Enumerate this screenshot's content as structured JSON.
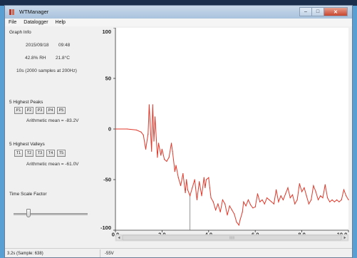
{
  "window": {
    "title": "WTManager",
    "controls": {
      "minimize": "–",
      "maximize": "□",
      "close": "✕"
    }
  },
  "menu": [
    "File",
    "Datalogger",
    "Help"
  ],
  "graph_info": {
    "heading": "Graph Info",
    "date": "2015/09/18",
    "time": "09:48",
    "humidity": "42.8% RH",
    "temperature": "21.8°C",
    "samples": "10s (2000 samples at 200Hz)"
  },
  "peaks": {
    "heading": "5 Highest Peaks",
    "buttons": [
      "P1",
      "P2",
      "P3",
      "P4",
      "P5"
    ],
    "mean": "Arithmetic mean = -83.2V"
  },
  "valleys": {
    "heading": "5 Highest Valleys",
    "buttons": [
      "T1",
      "T2",
      "T3",
      "T4",
      "T5"
    ],
    "mean": "Arithmetic mean = -61.0V"
  },
  "time_scale": {
    "label": "Time Scale Factor",
    "value": 0.2
  },
  "status": {
    "left": "3.2s (Sample: 638)",
    "right": "-55V"
  },
  "colors": {
    "series": "#e0392b",
    "cursor": "#7a7a7a",
    "axis": "#333333"
  },
  "chart_data": {
    "type": "line",
    "xlim": [
      0,
      10
    ],
    "ylim": [
      -100,
      100
    ],
    "x_ticks": [
      "0.0",
      "2.0",
      "4.0",
      "6.0",
      "8.0",
      "10.0"
    ],
    "y_ticks": [
      "100",
      "50",
      "0",
      "-50",
      "-100"
    ],
    "grid": false,
    "cursor_x": 3.2,
    "series": [
      {
        "x": [
          0,
          0.5,
          0.9,
          1.1,
          1.2,
          1.3,
          1.4,
          1.45,
          1.55,
          1.6,
          1.65,
          1.7,
          1.8,
          1.85,
          1.95,
          2.0,
          2.1,
          2.2,
          2.3,
          2.4,
          2.45,
          2.55,
          2.6,
          2.7,
          2.8,
          2.9,
          3.0,
          3.05,
          3.1,
          3.2,
          3.3,
          3.4,
          3.5,
          3.6,
          3.7,
          3.8,
          3.85,
          3.9,
          4.0,
          4.05,
          4.1,
          4.2,
          4.3,
          4.4,
          4.5,
          4.6,
          4.7,
          4.8,
          4.9,
          5.0,
          5.1,
          5.2,
          5.3,
          5.35,
          5.45,
          5.5,
          5.6,
          5.7,
          5.8,
          5.9,
          6.0,
          6.1,
          6.2,
          6.3,
          6.4,
          6.5,
          6.6,
          6.7,
          6.8,
          6.9,
          7.0,
          7.1,
          7.2,
          7.3,
          7.4,
          7.5,
          7.6,
          7.7,
          7.8,
          7.9,
          8.0,
          8.1,
          8.2,
          8.3,
          8.4,
          8.5,
          8.6,
          8.7,
          8.8,
          8.9,
          9.0,
          9.1,
          9.2,
          9.3,
          9.4,
          9.5,
          9.6,
          9.7,
          9.8,
          9.9,
          10.0
        ],
        "y": [
          0,
          0,
          -1,
          -3,
          -6,
          -20,
          -5,
          24,
          -22,
          24,
          -12,
          12,
          -28,
          -14,
          -26,
          -20,
          -30,
          -32,
          -28,
          -14,
          -22,
          -42,
          -36,
          -48,
          -56,
          -44,
          -63,
          -50,
          -60,
          -66,
          -58,
          -50,
          -70,
          -52,
          -66,
          -48,
          -58,
          -50,
          -48,
          -58,
          -68,
          -72,
          -80,
          -74,
          -82,
          -70,
          -74,
          -85,
          -76,
          -80,
          -84,
          -92,
          -95,
          -90,
          -82,
          -72,
          -76,
          -70,
          -75,
          -78,
          -77,
          -64,
          -72,
          -70,
          -74,
          -68,
          -70,
          -72,
          -74,
          -60,
          -72,
          -66,
          -70,
          -64,
          -58,
          -68,
          -65,
          -74,
          -70,
          -54,
          -62,
          -58,
          -66,
          -74,
          -70,
          -56,
          -62,
          -70,
          -66,
          -68,
          -55,
          -68,
          -72,
          -70,
          -72,
          -70,
          -72,
          -70,
          -60,
          -66,
          -70
        ]
      }
    ]
  }
}
